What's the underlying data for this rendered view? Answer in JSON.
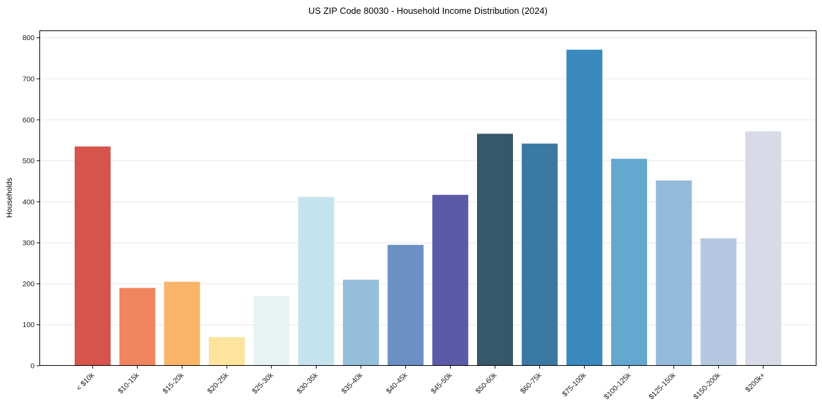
{
  "chart_data": {
    "type": "bar",
    "title": "US ZIP Code 80030 - Household Income Distribution (2024)",
    "xlabel": "",
    "ylabel": "Households",
    "categories": [
      "< $10k",
      "$10-15k",
      "$15-20k",
      "$20-25k",
      "$25-30k",
      "$30-35k",
      "$35-40k",
      "$40-45k",
      "$45-50k",
      "$50-60k",
      "$60-75k",
      "$75-100k",
      "$100-125k",
      "$125-150k",
      "$150-200k",
      "$200k+"
    ],
    "values": [
      535,
      190,
      205,
      70,
      170,
      412,
      210,
      295,
      417,
      566,
      542,
      771,
      505,
      452,
      311,
      572
    ],
    "bar_colors": [
      "#d7544d",
      "#f0855f",
      "#f9b46a",
      "#fde49c",
      "#e8f2f3",
      "#c5e3ef",
      "#95bed9",
      "#6c90c4",
      "#5a5aa8",
      "#36586a",
      "#3a79a1",
      "#3a8ac0",
      "#63a8cf",
      "#94badb",
      "#b6c8e1",
      "#d8dae7"
    ],
    "yticks": [
      0,
      100,
      200,
      300,
      400,
      500,
      600,
      700,
      800
    ],
    "ylim": [
      0,
      818
    ],
    "grid": "horizontal",
    "tick_label_rotation": 45,
    "legend": "none",
    "text_color": "#1a1a1a",
    "grid_color": "#e7e7ea",
    "spine_color": "#000000",
    "background_color": "#ffffff"
  }
}
